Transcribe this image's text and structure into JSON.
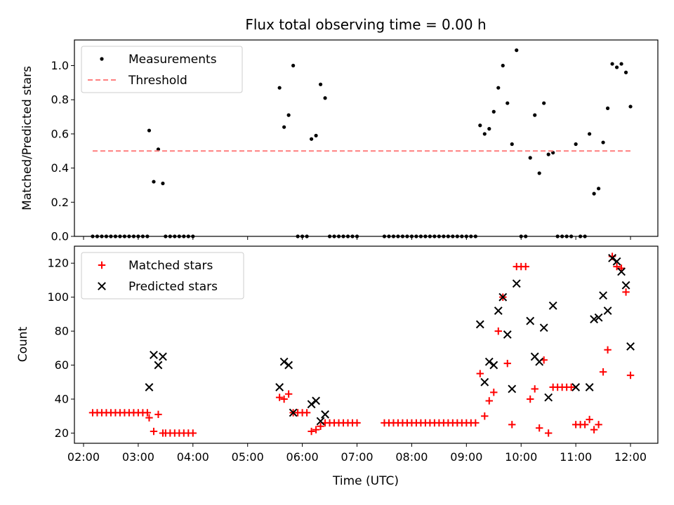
{
  "chart_data": [
    {
      "type": "scatter",
      "title": "Flux total observing time = 0.00 h",
      "xlabel": "",
      "ylabel": "Matched/Predicted stars",
      "xlim": [
        "01:50",
        "12:30"
      ],
      "ylim": [
        0,
        1.15
      ],
      "yticks": [
        "0.0",
        "0.2",
        "0.4",
        "0.6",
        "0.8",
        "1.0"
      ],
      "legend_position": "top-left",
      "series": [
        {
          "name": "Measurements",
          "marker": "dot",
          "color": "#000000",
          "points": [
            [
              "02:10",
              0
            ],
            [
              "02:15",
              0
            ],
            [
              "02:20",
              0
            ],
            [
              "02:25",
              0
            ],
            [
              "02:30",
              0
            ],
            [
              "02:35",
              0
            ],
            [
              "02:40",
              0
            ],
            [
              "02:45",
              0
            ],
            [
              "02:50",
              0
            ],
            [
              "02:55",
              0
            ],
            [
              "03:00",
              0
            ],
            [
              "03:05",
              0
            ],
            [
              "03:10",
              0
            ],
            [
              "03:12",
              0.62
            ],
            [
              "03:17",
              0.32
            ],
            [
              "03:22",
              0.51
            ],
            [
              "03:27",
              0.31
            ],
            [
              "03:30",
              0
            ],
            [
              "03:35",
              0
            ],
            [
              "03:40",
              0
            ],
            [
              "03:45",
              0
            ],
            [
              "03:50",
              0
            ],
            [
              "03:55",
              0
            ],
            [
              "04:00",
              0
            ],
            [
              "05:35",
              0.87
            ],
            [
              "05:40",
              0.64
            ],
            [
              "05:45",
              0.71
            ],
            [
              "05:50",
              1.0
            ],
            [
              "05:55",
              0
            ],
            [
              "06:00",
              0
            ],
            [
              "06:05",
              0
            ],
            [
              "06:10",
              0.57
            ],
            [
              "06:15",
              0.59
            ],
            [
              "06:20",
              0.89
            ],
            [
              "06:25",
              0.81
            ],
            [
              "06:30",
              0
            ],
            [
              "06:35",
              0
            ],
            [
              "06:40",
              0
            ],
            [
              "06:45",
              0
            ],
            [
              "06:50",
              0
            ],
            [
              "06:55",
              0
            ],
            [
              "07:00",
              0
            ],
            [
              "07:30",
              0
            ],
            [
              "07:35",
              0
            ],
            [
              "07:40",
              0
            ],
            [
              "07:45",
              0
            ],
            [
              "07:50",
              0
            ],
            [
              "07:55",
              0
            ],
            [
              "08:00",
              0
            ],
            [
              "08:05",
              0
            ],
            [
              "08:10",
              0
            ],
            [
              "08:15",
              0
            ],
            [
              "08:20",
              0
            ],
            [
              "08:25",
              0
            ],
            [
              "08:30",
              0
            ],
            [
              "08:35",
              0
            ],
            [
              "08:40",
              0
            ],
            [
              "08:45",
              0
            ],
            [
              "08:50",
              0
            ],
            [
              "08:55",
              0
            ],
            [
              "09:00",
              0
            ],
            [
              "09:05",
              0
            ],
            [
              "09:10",
              0
            ],
            [
              "09:15",
              0.65
            ],
            [
              "09:20",
              0.6
            ],
            [
              "09:25",
              0.63
            ],
            [
              "09:30",
              0.73
            ],
            [
              "09:35",
              0.87
            ],
            [
              "09:40",
              1.0
            ],
            [
              "09:45",
              0.78
            ],
            [
              "09:50",
              0.54
            ],
            [
              "09:55",
              1.09
            ],
            [
              "10:00",
              0
            ],
            [
              "10:05",
              0
            ],
            [
              "10:10",
              0.46
            ],
            [
              "10:15",
              0.71
            ],
            [
              "10:20",
              0.37
            ],
            [
              "10:25",
              0.78
            ],
            [
              "10:30",
              0.48
            ],
            [
              "10:35",
              0.49
            ],
            [
              "10:40",
              0
            ],
            [
              "10:45",
              0
            ],
            [
              "10:50",
              0
            ],
            [
              "10:55",
              0
            ],
            [
              "11:00",
              0.54
            ],
            [
              "11:05",
              0
            ],
            [
              "11:10",
              0
            ],
            [
              "11:15",
              0.6
            ],
            [
              "11:20",
              0.25
            ],
            [
              "11:25",
              0.28
            ],
            [
              "11:30",
              0.55
            ],
            [
              "11:35",
              0.75
            ],
            [
              "11:40",
              1.01
            ],
            [
              "11:45",
              0.99
            ],
            [
              "11:50",
              1.01
            ],
            [
              "11:55",
              0.96
            ],
            [
              "12:00",
              0.76
            ]
          ]
        },
        {
          "name": "Threshold",
          "marker": "dashed-line",
          "color": "#ff7f7f",
          "points": [
            [
              "02:10",
              0.5
            ],
            [
              "12:00",
              0.5
            ]
          ]
        }
      ]
    },
    {
      "type": "scatter",
      "title": "",
      "xlabel": "Time (UTC)",
      "ylabel": "Count",
      "xlim": [
        "01:50",
        "12:30"
      ],
      "ylim": [
        14,
        130
      ],
      "yticks": [
        "20",
        "40",
        "60",
        "80",
        "100",
        "120"
      ],
      "xticks": [
        "02:00",
        "03:00",
        "04:00",
        "05:00",
        "06:00",
        "07:00",
        "08:00",
        "09:00",
        "10:00",
        "11:00",
        "12:00"
      ],
      "legend_position": "top-left",
      "series": [
        {
          "name": "Matched stars",
          "marker": "plus",
          "color": "#ff0000",
          "points": [
            [
              "02:10",
              32
            ],
            [
              "02:15",
              32
            ],
            [
              "02:20",
              32
            ],
            [
              "02:25",
              32
            ],
            [
              "02:30",
              32
            ],
            [
              "02:35",
              32
            ],
            [
              "02:40",
              32
            ],
            [
              "02:45",
              32
            ],
            [
              "02:50",
              32
            ],
            [
              "02:55",
              32
            ],
            [
              "03:00",
              32
            ],
            [
              "03:05",
              32
            ],
            [
              "03:10",
              32
            ],
            [
              "03:12",
              29
            ],
            [
              "03:17",
              21
            ],
            [
              "03:22",
              31
            ],
            [
              "03:27",
              20
            ],
            [
              "03:30",
              20
            ],
            [
              "03:35",
              20
            ],
            [
              "03:40",
              20
            ],
            [
              "03:45",
              20
            ],
            [
              "03:50",
              20
            ],
            [
              "03:55",
              20
            ],
            [
              "04:00",
              20
            ],
            [
              "05:35",
              41
            ],
            [
              "05:40",
              40
            ],
            [
              "05:45",
              43
            ],
            [
              "05:50",
              32
            ],
            [
              "05:55",
              32
            ],
            [
              "06:00",
              32
            ],
            [
              "06:05",
              32
            ],
            [
              "06:10",
              21
            ],
            [
              "06:15",
              22
            ],
            [
              "06:20",
              24
            ],
            [
              "06:25",
              26
            ],
            [
              "06:30",
              26
            ],
            [
              "06:35",
              26
            ],
            [
              "06:40",
              26
            ],
            [
              "06:45",
              26
            ],
            [
              "06:50",
              26
            ],
            [
              "06:55",
              26
            ],
            [
              "07:00",
              26
            ],
            [
              "07:30",
              26
            ],
            [
              "07:35",
              26
            ],
            [
              "07:40",
              26
            ],
            [
              "07:45",
              26
            ],
            [
              "07:50",
              26
            ],
            [
              "07:55",
              26
            ],
            [
              "08:00",
              26
            ],
            [
              "08:05",
              26
            ],
            [
              "08:10",
              26
            ],
            [
              "08:15",
              26
            ],
            [
              "08:20",
              26
            ],
            [
              "08:25",
              26
            ],
            [
              "08:30",
              26
            ],
            [
              "08:35",
              26
            ],
            [
              "08:40",
              26
            ],
            [
              "08:45",
              26
            ],
            [
              "08:50",
              26
            ],
            [
              "08:55",
              26
            ],
            [
              "09:00",
              26
            ],
            [
              "09:05",
              26
            ],
            [
              "09:10",
              26
            ],
            [
              "09:15",
              55
            ],
            [
              "09:20",
              30
            ],
            [
              "09:25",
              39
            ],
            [
              "09:30",
              44
            ],
            [
              "09:35",
              80
            ],
            [
              "09:40",
              100
            ],
            [
              "09:45",
              61
            ],
            [
              "09:50",
              25
            ],
            [
              "09:55",
              118
            ],
            [
              "10:00",
              118
            ],
            [
              "10:05",
              118
            ],
            [
              "10:10",
              40
            ],
            [
              "10:15",
              46
            ],
            [
              "10:20",
              23
            ],
            [
              "10:25",
              63
            ],
            [
              "10:30",
              20
            ],
            [
              "10:35",
              47
            ],
            [
              "10:40",
              47
            ],
            [
              "10:45",
              47
            ],
            [
              "10:50",
              47
            ],
            [
              "10:55",
              47
            ],
            [
              "11:00",
              25
            ],
            [
              "11:05",
              25
            ],
            [
              "11:10",
              25
            ],
            [
              "11:15",
              28
            ],
            [
              "11:20",
              22
            ],
            [
              "11:25",
              25
            ],
            [
              "11:30",
              56
            ],
            [
              "11:35",
              69
            ],
            [
              "11:40",
              124
            ],
            [
              "11:45",
              118
            ],
            [
              "11:50",
              117
            ],
            [
              "11:55",
              103
            ],
            [
              "12:00",
              54
            ]
          ]
        },
        {
          "name": "Predicted stars",
          "marker": "x",
          "color": "#000000",
          "points": [
            [
              "03:12",
              47
            ],
            [
              "03:17",
              66
            ],
            [
              "03:22",
              60
            ],
            [
              "03:27",
              65
            ],
            [
              "05:35",
              47
            ],
            [
              "05:40",
              62
            ],
            [
              "05:45",
              60
            ],
            [
              "05:50",
              32
            ],
            [
              "06:10",
              37
            ],
            [
              "06:15",
              39
            ],
            [
              "06:20",
              27
            ],
            [
              "06:25",
              31
            ],
            [
              "09:15",
              84
            ],
            [
              "09:20",
              50
            ],
            [
              "09:25",
              62
            ],
            [
              "09:30",
              60
            ],
            [
              "09:35",
              92
            ],
            [
              "09:40",
              100
            ],
            [
              "09:45",
              78
            ],
            [
              "09:50",
              46
            ],
            [
              "09:55",
              108
            ],
            [
              "10:10",
              86
            ],
            [
              "10:15",
              65
            ],
            [
              "10:20",
              62
            ],
            [
              "10:25",
              82
            ],
            [
              "10:30",
              41
            ],
            [
              "10:35",
              95
            ],
            [
              "11:00",
              47
            ],
            [
              "11:15",
              47
            ],
            [
              "11:20",
              87
            ],
            [
              "11:25",
              88
            ],
            [
              "11:30",
              101
            ],
            [
              "11:35",
              92
            ],
            [
              "11:40",
              123
            ],
            [
              "11:45",
              121
            ],
            [
              "11:50",
              115
            ],
            [
              "11:55",
              107
            ],
            [
              "12:00",
              71
            ]
          ]
        }
      ]
    }
  ]
}
